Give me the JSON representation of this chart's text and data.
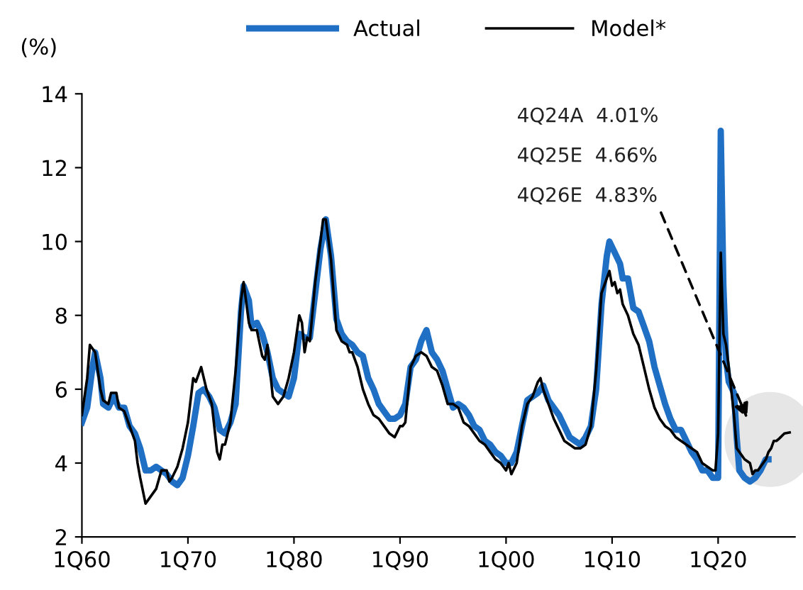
{
  "chart_data": {
    "type": "line",
    "ylabel": "(%)",
    "annotations": [
      "4Q24A  4.01%",
      "4Q25E  4.66%",
      "4Q26E  4.83%"
    ],
    "xlim": [
      "1960-01",
      "2027-04"
    ],
    "xticks": [
      {
        "value": "1960-01",
        "label": "1Q60"
      },
      {
        "value": "1970-01",
        "label": "1Q70"
      },
      {
        "value": "1980-01",
        "label": "1Q80"
      },
      {
        "value": "1990-01",
        "label": "1Q90"
      },
      {
        "value": "2000-01",
        "label": "1Q00"
      },
      {
        "value": "2010-01",
        "label": "1Q10"
      },
      {
        "value": "2020-01",
        "label": "1Q20"
      }
    ],
    "ylim": [
      2,
      14
    ],
    "yticks": [
      2,
      4,
      6,
      8,
      10,
      12,
      14
    ],
    "grid": false,
    "legend": "top",
    "marker": "none",
    "line_style": "solid",
    "series": [
      {
        "name": "Actual",
        "color": "#1f6fc5",
        "x": [
          "1960-01",
          "1960-07",
          "1961-01",
          "1961-04",
          "1961-10",
          "1962-01",
          "1962-07",
          "1963-01",
          "1963-07",
          "1964-01",
          "1964-07",
          "1965-01",
          "1965-07",
          "1966-01",
          "1966-07",
          "1967-01",
          "1967-07",
          "1968-01",
          "1968-07",
          "1969-01",
          "1969-07",
          "1970-01",
          "1970-07",
          "1971-01",
          "1971-07",
          "1972-01",
          "1972-07",
          "1973-01",
          "1973-07",
          "1974-01",
          "1974-07",
          "1975-01",
          "1975-04",
          "1975-10",
          "1976-01",
          "1976-07",
          "1977-01",
          "1977-07",
          "1978-01",
          "1978-07",
          "1979-01",
          "1979-07",
          "1980-01",
          "1980-07",
          "1981-01",
          "1981-07",
          "1982-01",
          "1982-07",
          "1983-01",
          "1983-07",
          "1984-01",
          "1984-07",
          "1985-01",
          "1985-07",
          "1986-01",
          "1986-07",
          "1987-01",
          "1987-07",
          "1988-01",
          "1988-07",
          "1989-01",
          "1989-07",
          "1990-01",
          "1990-07",
          "1991-01",
          "1991-07",
          "1992-01",
          "1992-07",
          "1993-01",
          "1993-07",
          "1994-01",
          "1994-07",
          "1995-01",
          "1995-07",
          "1996-01",
          "1996-07",
          "1997-01",
          "1997-07",
          "1998-01",
          "1998-07",
          "1999-01",
          "1999-07",
          "2000-01",
          "2000-07",
          "2001-01",
          "2001-07",
          "2002-01",
          "2002-07",
          "2003-01",
          "2003-07",
          "2004-01",
          "2004-07",
          "2005-01",
          "2005-07",
          "2006-01",
          "2006-07",
          "2007-01",
          "2007-07",
          "2008-01",
          "2008-07",
          "2009-01",
          "2009-07",
          "2009-10",
          "2010-04",
          "2010-10",
          "2011-01",
          "2011-07",
          "2012-01",
          "2012-07",
          "2013-01",
          "2013-07",
          "2014-01",
          "2014-07",
          "2015-01",
          "2015-07",
          "2016-01",
          "2016-07",
          "2017-01",
          "2017-07",
          "2018-01",
          "2018-07",
          "2019-01",
          "2019-07",
          "2020-01",
          "2020-04",
          "2020-07",
          "2020-10",
          "2021-01",
          "2021-07",
          "2021-10",
          "2022-01",
          "2022-07",
          "2023-01",
          "2023-07",
          "2023-10",
          "2024-01",
          "2024-07",
          "2024-10"
        ],
        "values": [
          5.1,
          5.5,
          6.6,
          7.0,
          6.3,
          5.6,
          5.5,
          5.8,
          5.5,
          5.5,
          5.0,
          4.8,
          4.4,
          3.8,
          3.8,
          3.9,
          3.8,
          3.7,
          3.5,
          3.4,
          3.6,
          4.2,
          5.0,
          5.9,
          6.0,
          5.8,
          5.5,
          4.9,
          4.8,
          5.1,
          5.6,
          8.1,
          8.8,
          8.4,
          7.7,
          7.8,
          7.5,
          7.0,
          6.3,
          6.0,
          5.9,
          5.8,
          6.3,
          7.5,
          7.4,
          7.4,
          8.6,
          9.8,
          10.6,
          9.6,
          7.9,
          7.5,
          7.3,
          7.2,
          7.0,
          6.9,
          6.3,
          6.0,
          5.6,
          5.4,
          5.2,
          5.2,
          5.3,
          5.6,
          6.6,
          6.8,
          7.3,
          7.6,
          7.0,
          6.8,
          6.5,
          6.0,
          5.5,
          5.6,
          5.5,
          5.3,
          5.0,
          4.9,
          4.6,
          4.5,
          4.3,
          4.2,
          4.0,
          4.0,
          4.3,
          5.0,
          5.7,
          5.8,
          5.9,
          6.1,
          5.7,
          5.5,
          5.3,
          5.0,
          4.7,
          4.6,
          4.5,
          4.7,
          5.0,
          6.0,
          8.3,
          9.6,
          10.0,
          9.7,
          9.4,
          9.0,
          9.0,
          8.2,
          8.1,
          7.7,
          7.3,
          6.6,
          6.1,
          5.6,
          5.2,
          4.9,
          4.9,
          4.6,
          4.3,
          4.1,
          3.8,
          3.8,
          3.6,
          3.6,
          13.0,
          8.8,
          6.8,
          6.2,
          5.9,
          4.7,
          3.8,
          3.6,
          3.5,
          3.6,
          3.7,
          3.8,
          4.1,
          4.1
        ]
      },
      {
        "name": "Model*",
        "color": "#000000",
        "x": [
          "1960-01",
          "1960-07",
          "1960-10",
          "1961-04",
          "1961-10",
          "1962-01",
          "1962-07",
          "1962-10",
          "1963-04",
          "1963-07",
          "1964-01",
          "1964-07",
          "1965-01",
          "1965-04",
          "1965-07",
          "1966-01",
          "1966-07",
          "1967-01",
          "1967-07",
          "1968-01",
          "1968-04",
          "1968-07",
          "1969-01",
          "1969-07",
          "1970-01",
          "1970-07",
          "1970-10",
          "1971-04",
          "1971-10",
          "1972-04",
          "1972-10",
          "1973-01",
          "1973-04",
          "1973-07",
          "1974-01",
          "1974-07",
          "1975-01",
          "1975-04",
          "1975-10",
          "1976-01",
          "1976-07",
          "1977-01",
          "1977-04",
          "1977-07",
          "1978-01",
          "1978-07",
          "1979-01",
          "1979-07",
          "1980-01",
          "1980-07",
          "1980-10",
          "1981-01",
          "1981-04",
          "1981-07",
          "1982-01",
          "1982-07",
          "1982-10",
          "1983-01",
          "1983-07",
          "1984-01",
          "1984-07",
          "1985-01",
          "1985-04",
          "1985-07",
          "1986-01",
          "1986-07",
          "1987-01",
          "1987-07",
          "1988-01",
          "1988-07",
          "1989-01",
          "1989-07",
          "1990-01",
          "1990-04",
          "1990-07",
          "1991-01",
          "1991-07",
          "1992-01",
          "1992-07",
          "1993-01",
          "1993-07",
          "1994-01",
          "1994-07",
          "1995-01",
          "1995-07",
          "1996-01",
          "1996-07",
          "1997-01",
          "1997-07",
          "1998-01",
          "1998-07",
          "1999-01",
          "1999-07",
          "2000-01",
          "2000-04",
          "2000-07",
          "2001-01",
          "2001-07",
          "2002-01",
          "2002-07",
          "2003-01",
          "2003-04",
          "2003-07",
          "2004-01",
          "2004-07",
          "2005-01",
          "2005-07",
          "2006-01",
          "2006-07",
          "2007-01",
          "2007-07",
          "2008-01",
          "2008-07",
          "2009-01",
          "2009-07",
          "2009-10",
          "2010-01",
          "2010-04",
          "2010-07",
          "2010-10",
          "2011-01",
          "2011-07",
          "2012-01",
          "2012-07",
          "2013-01",
          "2013-07",
          "2014-01",
          "2014-07",
          "2015-01",
          "2015-07",
          "2016-01",
          "2016-07",
          "2017-01",
          "2017-07",
          "2018-01",
          "2018-07",
          "2019-01",
          "2019-07",
          "2019-10",
          "2020-01",
          "2020-04",
          "2020-07",
          "2020-10",
          "2021-01",
          "2021-07",
          "2021-10",
          "2022-01",
          "2022-07",
          "2023-01",
          "2023-04",
          "2023-07",
          "2023-10",
          "2024-01",
          "2024-07",
          "2024-10",
          "2025-01",
          "2025-04",
          "2025-07",
          "2025-10",
          "2026-04",
          "2026-10"
        ],
        "values": [
          5.3,
          6.3,
          7.2,
          7.0,
          6.0,
          5.7,
          5.6,
          5.9,
          5.9,
          5.5,
          5.4,
          5.0,
          4.6,
          4.0,
          3.6,
          2.9,
          3.1,
          3.3,
          3.8,
          3.8,
          3.5,
          3.6,
          3.9,
          4.4,
          5.1,
          6.3,
          6.2,
          6.6,
          6.0,
          5.6,
          4.3,
          4.1,
          4.5,
          4.5,
          5.1,
          6.5,
          8.4,
          8.9,
          7.8,
          7.6,
          7.6,
          6.9,
          6.8,
          7.2,
          5.8,
          5.6,
          5.8,
          6.3,
          7.0,
          8.0,
          7.8,
          7.0,
          7.4,
          7.3,
          8.9,
          10.0,
          10.6,
          10.6,
          9.5,
          7.6,
          7.3,
          7.2,
          7.0,
          7.0,
          6.6,
          6.0,
          5.6,
          5.3,
          5.2,
          5.0,
          4.8,
          4.7,
          5.0,
          5.0,
          5.1,
          6.6,
          6.9,
          7.0,
          6.9,
          6.6,
          6.5,
          6.1,
          5.6,
          5.6,
          5.5,
          5.1,
          5.0,
          4.8,
          4.6,
          4.5,
          4.3,
          4.1,
          4.0,
          3.8,
          4.0,
          3.7,
          4.0,
          5.0,
          5.6,
          5.8,
          6.2,
          6.3,
          6.0,
          5.6,
          5.2,
          4.9,
          4.6,
          4.5,
          4.4,
          4.4,
          4.5,
          5.0,
          6.5,
          8.6,
          9.0,
          9.2,
          8.8,
          8.9,
          8.6,
          8.7,
          8.3,
          8.0,
          7.5,
          7.2,
          6.6,
          6.0,
          5.5,
          5.2,
          5.0,
          4.9,
          4.7,
          4.6,
          4.5,
          4.4,
          4.3,
          4.0,
          3.9,
          3.8,
          3.8,
          4.8,
          9.7,
          7.5,
          7.2,
          6.6,
          5.3,
          4.4,
          4.3,
          4.1,
          4.0,
          3.7,
          3.8,
          3.8,
          3.9,
          4.1,
          4.3,
          4.4,
          4.6,
          4.6,
          4.66,
          4.8,
          4.83
        ]
      }
    ]
  }
}
